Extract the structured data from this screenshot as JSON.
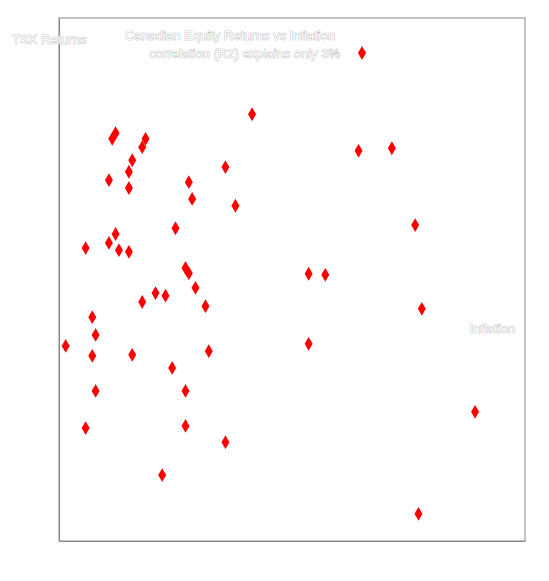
{
  "chart_data": {
    "type": "scatter",
    "title": "Canadian Equity Returns vs Inflation",
    "y_label": "TSX Returns",
    "x_label": "Inflation",
    "xlim": [
      0,
      14
    ],
    "ylim": [
      -40,
      60
    ],
    "tick_labels": false,
    "legend": "top",
    "series": [
      {
        "name": "correlation (R2) explains only 3%",
        "color": "#ff0000",
        "marker": "diamond",
        "x": [
          5.8,
          1.7,
          1.6,
          2.6,
          2.5,
          2.2,
          2.1,
          1.5,
          2.1,
          3.9,
          5.0,
          4.0,
          5.3,
          9.0,
          10.0,
          10.7,
          3.5,
          1.7,
          1.5,
          0.8,
          1.8,
          2.1,
          3.8,
          3.9,
          7.5,
          8.0,
          4.1,
          2.9,
          3.2,
          2.5,
          4.4,
          10.9,
          1.0,
          1.1,
          0.2,
          7.5,
          4.5,
          1.0,
          2.2,
          3.4,
          1.1,
          3.8,
          0.8,
          3.8,
          5.0,
          12.5,
          3.1,
          10.8
        ],
        "values": [
          41.6,
          38.0,
          36.9,
          36.9,
          35.3,
          32.8,
          30.6,
          29.0,
          27.5,
          28.6,
          31.5,
          25.4,
          24.1,
          34.6,
          35.1,
          20.4,
          19.8,
          18.7,
          17.0,
          16.0,
          15.6,
          15.3,
          12.2,
          11.2,
          11.1,
          10.9,
          8.4,
          7.4,
          6.9,
          5.7,
          4.9,
          4.4,
          2.8,
          -0.6,
          -2.7,
          -2.3,
          -3.7,
          -4.6,
          -4.4,
          -6.9,
          -11.3,
          -11.3,
          -18.4,
          -18.0,
          -21.1,
          -15.3,
          -27.4,
          -34.8
        ]
      }
    ]
  }
}
